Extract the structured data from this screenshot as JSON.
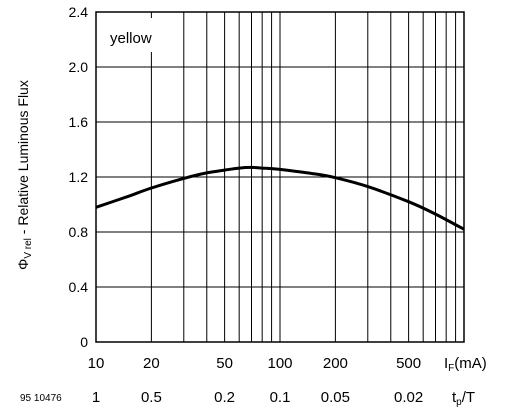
{
  "chart_data": {
    "type": "line",
    "annotation": "yellow",
    "ylabel": "Φ",
    "ylabel_sub": "V rel",
    "ylabel_rest": " - Relative Luminous Flux",
    "xlabel_main": "I",
    "xlabel_main_sub": "F",
    "xlabel_main_unit": "(mA)",
    "xlabel_secondary": "t",
    "xlabel_secondary_sub": "p",
    "xlabel_secondary_rest": "/T",
    "figure_id": "95 10476",
    "x_scale": "log",
    "xlim": [
      10,
      1000
    ],
    "ylim": [
      0,
      2.4
    ],
    "y_ticks": [
      0,
      0.4,
      0.8,
      1.2,
      1.6,
      2.0,
      2.4
    ],
    "y_tick_labels": [
      "0",
      "0.4",
      "0.8",
      "1.2",
      "1.6",
      "2.0",
      "2.4"
    ],
    "x_tick_labels": [
      {
        "value": 10,
        "label": "10"
      },
      {
        "value": 20,
        "label": "20"
      },
      {
        "value": 50,
        "label": "50"
      },
      {
        "value": 100,
        "label": "100"
      },
      {
        "value": 200,
        "label": "200"
      },
      {
        "value": 500,
        "label": "500"
      }
    ],
    "x_secondary_labels": [
      {
        "value": 10,
        "label": "1"
      },
      {
        "value": 20,
        "label": "0.5"
      },
      {
        "value": 50,
        "label": "0.2"
      },
      {
        "value": 100,
        "label": "0.1"
      },
      {
        "value": 200,
        "label": "0.05"
      },
      {
        "value": 500,
        "label": "0.02"
      }
    ],
    "grid": true,
    "series": [
      {
        "x": [
          10,
          15,
          20,
          30,
          40,
          50,
          60,
          70,
          80,
          100,
          150,
          200,
          300,
          500,
          700,
          1000
        ],
        "y": [
          0.98,
          1.06,
          1.12,
          1.19,
          1.23,
          1.25,
          1.265,
          1.27,
          1.265,
          1.255,
          1.225,
          1.195,
          1.13,
          1.02,
          0.93,
          0.82
        ]
      }
    ]
  }
}
